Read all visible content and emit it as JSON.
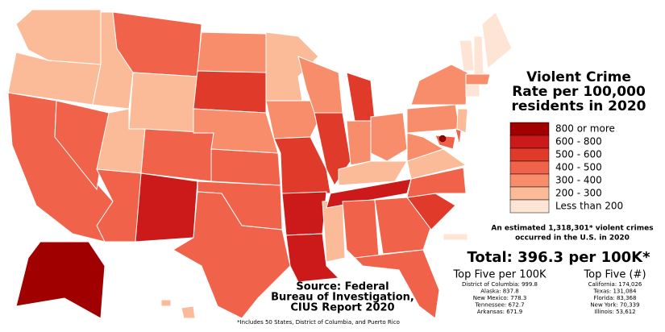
{
  "title": [
    "Violent Crime",
    "Rate per 100,000",
    "residents in 2020"
  ],
  "legend": [
    {
      "label": "800 or more",
      "color": "#a00000"
    },
    {
      "label": "600 - 800",
      "color": "#cc1a1a"
    },
    {
      "label": "500 - 600",
      "color": "#e03a2a"
    },
    {
      "label": "400 - 500",
      "color": "#f0624a"
    },
    {
      "label": "300 - 400",
      "color": "#f88d6c"
    },
    {
      "label": "200 - 300",
      "color": "#fbbb98"
    },
    {
      "label": "Less than 200",
      "color": "#fde4d4"
    }
  ],
  "estimate": [
    "An estimated 1,318,301* violent crimes",
    "occurred in the U.S. in 2020"
  ],
  "total": "Total: 396.3 per 100K*",
  "top_rate": {
    "title": "Top Five per 100K",
    "items": [
      "District of Columbia: 999.8",
      "Alaska: 837.8",
      "New Mexico: 778.3",
      "Tennessee: 672.7",
      "Arkansas: 671.9"
    ]
  },
  "top_count": {
    "title": "Top Five (#)",
    "items": [
      "California: 174,026",
      "Texas: 131,084",
      "Florida: 83,368",
      "New York: 70,339",
      "Illinois: 53,612"
    ]
  },
  "source": [
    "Source: Federal",
    "Bureau of Investigation,",
    "CIUS Report 2020"
  ],
  "footnote": "*Includes 50 States, District of Columbia, and Puerto Rico"
}
